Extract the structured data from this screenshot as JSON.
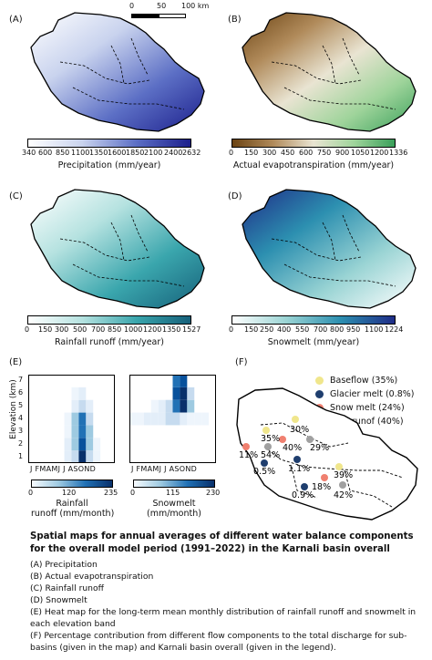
{
  "scale_bar": {
    "ticks": [
      "0",
      "50",
      "100 km"
    ]
  },
  "panels": {
    "A": {
      "label": "(A)",
      "ticks": [
        "340",
        "600",
        "850",
        "1100",
        "1350",
        "1600",
        "1850",
        "2100",
        "2400",
        "2632"
      ],
      "cbar_label": "Precipitation (mm/year)",
      "colors": [
        "#ffffff",
        "#c9d3ee",
        "#5c6fc5",
        "#1c1f8c"
      ]
    },
    "B": {
      "label": "(B)",
      "ticks": [
        "0",
        "150",
        "300",
        "450",
        "600",
        "750",
        "900",
        "1050",
        "1200",
        "1336"
      ],
      "cbar_label": "Actual evapotranspiration (mm/year)",
      "colors": [
        "#6b4414",
        "#b08a5a",
        "#e9e4d2",
        "#9fd49b",
        "#3aa05a"
      ]
    },
    "C": {
      "label": "(C)",
      "ticks": [
        "0",
        "150",
        "300",
        "500",
        "700",
        "850",
        "1000",
        "1200",
        "1350",
        "1527"
      ],
      "cbar_label": "Rainfall runoff (mm/year)",
      "colors": [
        "#ffffff",
        "#b5e2e0",
        "#3aa6ad",
        "#16607a"
      ]
    },
    "D": {
      "label": "(D)",
      "ticks": [
        "0",
        "150",
        "250",
        "400",
        "550",
        "700",
        "800",
        "950",
        "1100",
        "1224"
      ],
      "cbar_label": "Snowmelt (mm/year)",
      "colors": [
        "#ffffff",
        "#9ad4d4",
        "#2c8fb0",
        "#1f2c87"
      ]
    },
    "E": {
      "label": "(E)",
      "y_axis_label": "Elevation (km)",
      "y_ticks": [
        "7",
        "6",
        "5",
        "4",
        "3",
        "2",
        "1"
      ],
      "months": "J FMAMJ J ASOND",
      "rain": {
        "cbar_ticks": [
          "0",
          "120",
          "235"
        ],
        "cbar_label_1": "Rainfall",
        "cbar_label_2": "runoff (mm/month)"
      },
      "snow": {
        "cbar_ticks": [
          "0",
          "115",
          "230"
        ],
        "cbar_label_1": "Snowmelt",
        "cbar_label_2": "(mm/month)"
      }
    },
    "F": {
      "label": "(F)",
      "legend": [
        {
          "text": "Baseflow (35%)",
          "color": "#f0e68c"
        },
        {
          "text": "Glacier melt (0.8%)",
          "color": "#1f3e6e"
        },
        {
          "text": "Snow melt (24%)",
          "color": "#f08070"
        },
        {
          "text": "Rain runof (40%)",
          "color": "#a0a0a0"
        }
      ],
      "map_labels": [
        "35%",
        "30%",
        "40%",
        "29%",
        "11%",
        "54%",
        "0.5%",
        "1.1%",
        "39%",
        "18%",
        "0.9%",
        "42%"
      ]
    }
  },
  "caption": {
    "title": "Spatial maps for annual averages of different water balance components for the overall model period (1991–2022) in the Karnali basin overall",
    "items": [
      "(A) Precipitation",
      "(B) Actual evapotranspiration",
      "(C) Rainfall runoff",
      "(D) Snowmelt",
      "(E) Heat map for the long-term mean monthly distribution of rainfall runoff and snowmelt in each elevation band",
      "(F) Percentage contribution from different flow components to the total discharge for sub-basins (given in the map) and Karnali basin overall (given in the legend)."
    ]
  }
}
